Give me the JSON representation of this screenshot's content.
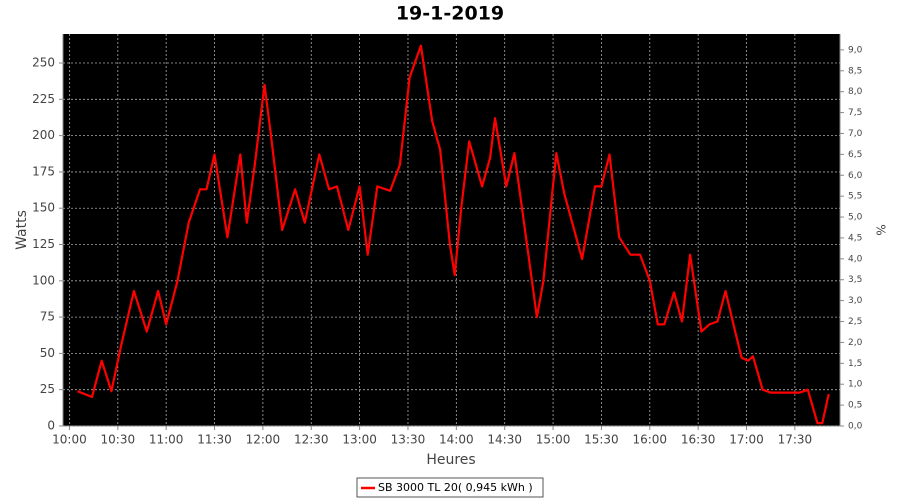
{
  "chart_data": {
    "type": "line",
    "title": "19-1-2019",
    "x_label": "Heures",
    "y_label": "Watts",
    "y2_label": "%",
    "x": [
      "10:05",
      "10:14",
      "10:20",
      "10:26",
      "10:32",
      "10:40",
      "10:48",
      "10:55",
      "11:00",
      "11:07",
      "11:14",
      "11:21",
      "11:25",
      "11:30",
      "11:38",
      "11:46",
      "11:50",
      "11:55",
      "12:01",
      "12:05",
      "12:12",
      "12:20",
      "12:26",
      "12:35",
      "12:41",
      "12:46",
      "12:53",
      "13:00",
      "13:05",
      "13:11",
      "13:19",
      "13:25",
      "13:31",
      "13:38",
      "13:45",
      "13:50",
      "13:56",
      "13:59",
      "14:03",
      "14:08",
      "14:16",
      "14:21",
      "14:24",
      "14:31",
      "14:36",
      "14:42",
      "14:50",
      "14:54",
      "15:02",
      "15:07",
      "15:18",
      "15:26",
      "15:30",
      "15:35",
      "15:41",
      "15:48",
      "15:54",
      "16:00",
      "16:05",
      "16:09",
      "16:15",
      "16:20",
      "16:25",
      "16:32",
      "16:37",
      "16:42",
      "16:47",
      "16:53",
      "16:57",
      "17:01",
      "17:04",
      "17:10",
      "17:15",
      "17:33",
      "17:38",
      "17:44",
      "17:47",
      "17:51"
    ],
    "series": [
      {
        "name": "SB 3000 TL 20( 0,945 kWh )",
        "color": "#ff0000",
        "values": [
          24,
          20,
          45,
          24,
          55,
          93,
          65,
          93,
          70,
          100,
          140,
          163,
          163,
          187,
          130,
          187,
          140,
          180,
          235,
          200,
          135,
          163,
          140,
          187,
          163,
          165,
          135,
          165,
          118,
          165,
          162,
          180,
          240,
          262,
          210,
          190,
          125,
          104,
          150,
          196,
          165,
          185,
          212,
          165,
          188,
          140,
          75,
          100,
          188,
          160,
          115,
          165,
          165,
          187,
          130,
          118,
          118,
          100,
          70,
          70,
          92,
          72,
          118,
          65,
          70,
          72,
          93,
          65,
          47,
          45,
          48,
          25,
          23,
          23,
          25,
          2,
          2,
          22
        ]
      }
    ],
    "xlim": [
      "09:56",
      "17:58"
    ],
    "xticks": [
      "10:00",
      "10:30",
      "11:00",
      "11:30",
      "12:00",
      "12:30",
      "13:00",
      "13:30",
      "14:00",
      "14:30",
      "15:00",
      "15:30",
      "16:00",
      "16:30",
      "17:00",
      "17:30"
    ],
    "ylim": [
      0,
      270
    ],
    "yticks": [
      0,
      25,
      50,
      75,
      100,
      125,
      150,
      175,
      200,
      225,
      250
    ],
    "y2lim": [
      0,
      9.38
    ],
    "y2ticks": [
      {
        "value": 0,
        "label": "0,0"
      },
      {
        "value": 0.5,
        "label": "0,5"
      },
      {
        "value": 1,
        "label": "1,0"
      },
      {
        "value": 1.5,
        "label": "1,5"
      },
      {
        "value": 2,
        "label": "2,0"
      },
      {
        "value": 2.5,
        "label": "2,5"
      },
      {
        "value": 3,
        "label": "3,0"
      },
      {
        "value": 3.5,
        "label": "3,5"
      },
      {
        "value": 4,
        "label": "4,0"
      },
      {
        "value": 4.5,
        "label": "4,5"
      },
      {
        "value": 5,
        "label": "5,0"
      },
      {
        "value": 5.5,
        "label": "5,5"
      },
      {
        "value": 6,
        "label": "6,0"
      },
      {
        "value": 6.5,
        "label": "6,5"
      },
      {
        "value": 7,
        "label": "7,0"
      },
      {
        "value": 7.5,
        "label": "7,5"
      },
      {
        "value": 8,
        "label": "8,0"
      },
      {
        "value": 8.5,
        "label": "8,5"
      },
      {
        "value": 9,
        "label": "9,0"
      }
    ],
    "grid": true
  }
}
